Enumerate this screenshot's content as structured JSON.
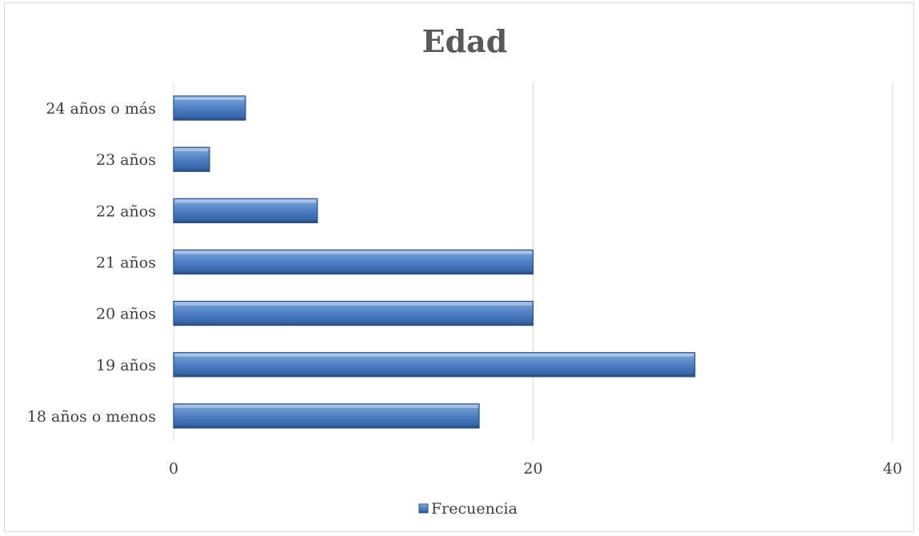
{
  "chart_data": {
    "type": "bar",
    "orientation": "horizontal",
    "title": "Edad",
    "categories": [
      "18 años o menos",
      "19 años",
      "20 años",
      "21 años",
      "22 años",
      "23 años",
      "24 años o más"
    ],
    "series": [
      {
        "name": "Frecuencia",
        "values": [
          17,
          29,
          20,
          20,
          8,
          2,
          4
        ]
      }
    ],
    "xlim": [
      0,
      40
    ],
    "x_ticks": [
      "0",
      "20",
      "40"
    ],
    "grid": true,
    "legend_position": "bottom",
    "colors": {
      "bar": "#4f81bd",
      "bar_light": "#7ea6d8",
      "bar_dark": "#2a4f84",
      "grid": "#d9d9d9",
      "text": "#404040",
      "title": "#595959"
    }
  }
}
